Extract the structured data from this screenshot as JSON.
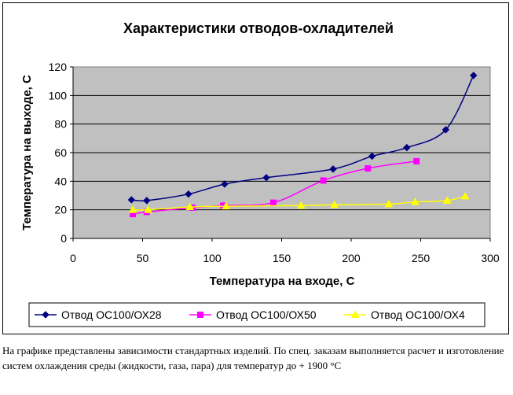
{
  "chart_data": {
    "type": "line",
    "title": "Характеристики отводов-охладителей",
    "xlabel": "Температура на входе, С",
    "ylabel": "Температура на выходе, С",
    "xlim": [
      0,
      300
    ],
    "ylim": [
      0,
      120
    ],
    "xticks": [
      0,
      50,
      100,
      150,
      200,
      250,
      300
    ],
    "yticks": [
      0,
      20,
      40,
      60,
      80,
      100,
      120
    ],
    "legend_position": "bottom",
    "series": [
      {
        "name": "Отвод ОС100/ОХ28",
        "color": "#000080",
        "marker": "diamond",
        "points": [
          [
            42,
            27
          ],
          [
            53,
            26.5
          ],
          [
            83,
            31
          ],
          [
            109,
            38
          ],
          [
            139,
            42.5
          ],
          [
            187,
            48.5
          ],
          [
            215,
            57.5
          ],
          [
            240,
            63.5
          ],
          [
            268,
            76
          ],
          [
            288,
            114
          ]
        ]
      },
      {
        "name": "Отвод ОС100/ОХ50",
        "color": "#ff00ff",
        "marker": "square",
        "points": [
          [
            43,
            17
          ],
          [
            53,
            18.5
          ],
          [
            86,
            21.5
          ],
          [
            108,
            23
          ],
          [
            144,
            25
          ],
          [
            180,
            40.5
          ],
          [
            212,
            49
          ],
          [
            247,
            54
          ]
        ]
      },
      {
        "name": "Отвод ОС100/ОХ4",
        "color": "#ffff00",
        "marker": "triangle",
        "points": [
          [
            43,
            20
          ],
          [
            54,
            20
          ],
          [
            84,
            22
          ],
          [
            110,
            22.5
          ],
          [
            164,
            23
          ],
          [
            188,
            23.5
          ],
          [
            227,
            24
          ],
          [
            246,
            25.5
          ],
          [
            269,
            26.5
          ],
          [
            282,
            29.5
          ]
        ]
      }
    ]
  },
  "caption": "На графике представлены зависимости стандартных изделий. По спец. заказам выполняется расчет и изготовление систем охлаждения среды (жидкости, газа, пара) для температур до + 1900 °С"
}
